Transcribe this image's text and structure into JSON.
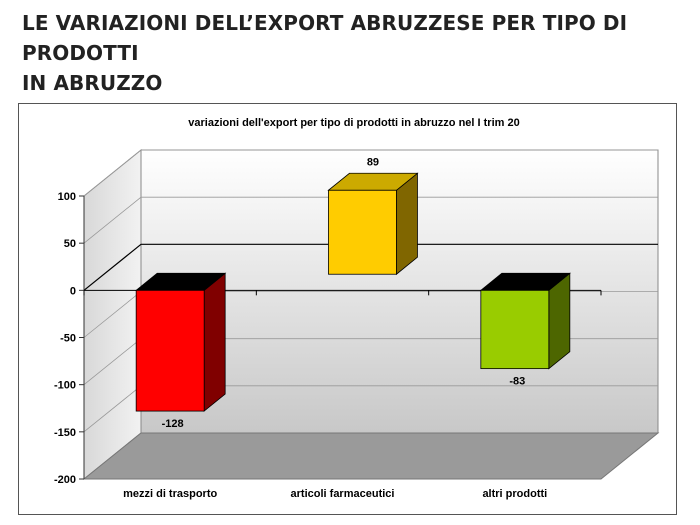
{
  "page": {
    "title_line1": "LE VARIAZIONI DELL’EXPORT ABRUZZESE PER TIPO DI PRODOTTI",
    "title_line2": "IN ABRUZZO"
  },
  "chart_data": {
    "type": "bar",
    "title": "variazioni dell'export per tipo di prodotti in abruzzo nel I trim 20",
    "categories": [
      "mezzi di trasporto",
      "articoli farmaceutici",
      "altri prodotti"
    ],
    "data_labels": [
      "-128",
      "89",
      "-83"
    ],
    "series": [
      {
        "values": [
          -128,
          89,
          -83
        ],
        "colors": [
          "#ff0000",
          "#ffcc00",
          "#99cc00"
        ],
        "side_colors": [
          "#800000",
          "#806600",
          "#4d6600"
        ],
        "top_colors": [
          "#000000",
          "#ccaa00",
          "#000000"
        ]
      }
    ],
    "ylim": [
      -200,
      100
    ],
    "yticks": [
      100,
      50,
      0,
      -50,
      -100,
      -150,
      -200
    ],
    "ytick_labels": [
      "100",
      "50",
      "0",
      "-50",
      "-100",
      "-150",
      "-200"
    ],
    "grid": true,
    "legend": "none",
    "style": "3d-perspective"
  }
}
